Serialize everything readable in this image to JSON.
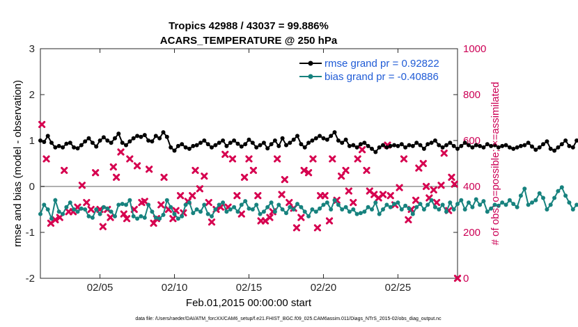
{
  "chart_data": {
    "type": "line",
    "title_line1": "Tropics 42988 / 43037 = 99.886%",
    "title_line2": "ACARS_TEMPERATURE @ 250 hPa",
    "xlabel": "Feb.01,2015 00:00:00 start",
    "ylabel_left": "rmse and bias (model - observation)",
    "ylabel_right": "# of obs: o=possible; ×=assimilated",
    "footer": "data file: /Users/raeder/DAI/ATM_forcXX/CAM6_setup/f.e21.FHIST_BGC.f09_025.CAM6assim.011/Diags_NTrS_2015-02/obs_diag_output.nc",
    "xlim": [
      1,
      29
    ],
    "ylim_left": [
      -2,
      3
    ],
    "ylim_right": [
      0,
      1000
    ],
    "x_ticks": [
      5,
      10,
      15,
      20,
      25
    ],
    "x_tick_labels": [
      "02/05",
      "02/10",
      "02/15",
      "02/20",
      "02/25"
    ],
    "y_left_ticks": [
      "-2",
      "-1",
      "0",
      "1",
      "2",
      "3"
    ],
    "y_right_ticks": [
      "0",
      "200",
      "400",
      "600",
      "800",
      "1000"
    ],
    "x_start": 1.0,
    "x_step": 0.25,
    "series": [
      {
        "name": "rmse grand pr = 0.92822",
        "color": "#000000",
        "axis": "left",
        "values": [
          1.0,
          0.97,
          1.1,
          0.95,
          0.85,
          0.88,
          0.85,
          0.93,
          0.95,
          0.85,
          0.83,
          0.9,
          0.98,
          1.05,
          0.95,
          0.87,
          1.0,
          1.07,
          1.0,
          0.95,
          1.05,
          1.15,
          0.95,
          0.9,
          0.98,
          1.05,
          1.1,
          1.08,
          1.12,
          1.0,
          0.98,
          1.1,
          1.05,
          1.18,
          1.08,
          0.85,
          0.78,
          0.88,
          0.92,
          0.85,
          0.82,
          0.88,
          0.9,
          0.95,
          1.0,
          0.92,
          0.85,
          0.9,
          0.95,
          1.0,
          0.88,
          0.95,
          1.0,
          0.93,
          0.87,
          0.92,
          1.02,
          0.95,
          0.85,
          0.9,
          0.95,
          0.83,
          0.92,
          1.0,
          0.88,
          1.05,
          0.9,
          0.95,
          1.02,
          1.1,
          0.92,
          0.85,
          0.95,
          1.0,
          1.05,
          1.1,
          1.05,
          1.02,
          1.1,
          1.18,
          1.0,
          0.95,
          1.02,
          0.88,
          0.9,
          0.85,
          0.92,
          0.95,
          0.88,
          0.82,
          0.75,
          0.85,
          0.9,
          0.85,
          0.88,
          0.9,
          0.88,
          0.92,
          0.85,
          0.9,
          0.88,
          0.95,
          0.9,
          0.82,
          0.92,
          0.95,
          1.0,
          0.9,
          0.85,
          0.9,
          0.95,
          0.88,
          0.82,
          0.88,
          0.95,
          0.9,
          0.85,
          0.9,
          0.88,
          0.85,
          0.92,
          0.88,
          0.9,
          0.85,
          0.88,
          0.9,
          0.85,
          0.82,
          0.85,
          0.88,
          0.9,
          0.95,
          0.87,
          0.8,
          0.85,
          0.92,
          0.98,
          0.82,
          0.78,
          0.85,
          0.92,
          1.0,
          0.88,
          0.85,
          1.0,
          0.95,
          0.98,
          0.92,
          0.88
        ]
      },
      {
        "name": "bias grand pr = -0.40886",
        "color": "#17827e",
        "axis": "left",
        "values": [
          -0.6,
          -0.4,
          -0.5,
          -0.7,
          -0.3,
          -0.55,
          -0.6,
          -0.45,
          -0.35,
          -0.5,
          -0.55,
          -0.48,
          -0.5,
          -0.65,
          -0.68,
          -0.5,
          -0.6,
          -0.45,
          -0.48,
          -0.55,
          -0.65,
          -0.4,
          -0.38,
          -0.4,
          -0.3,
          -0.65,
          -0.7,
          -0.65,
          -0.68,
          -0.4,
          -0.55,
          -0.68,
          -0.7,
          -0.62,
          -0.3,
          -0.45,
          -0.6,
          -0.7,
          -0.65,
          -0.4,
          -0.35,
          -0.58,
          -0.5,
          -0.55,
          -0.4,
          -0.6,
          -0.65,
          -0.5,
          -0.4,
          -0.35,
          -0.55,
          -0.5,
          -0.45,
          -0.55,
          -0.4,
          -0.32,
          -0.48,
          -0.5,
          -0.4,
          -0.6,
          -0.55,
          -0.45,
          -0.35,
          -0.55,
          -0.4,
          -0.5,
          -0.58,
          -0.45,
          -0.5,
          -0.38,
          -0.45,
          -0.55,
          -0.65,
          -0.5,
          -0.55,
          -0.48,
          -0.4,
          -0.35,
          -0.5,
          -0.3,
          -0.4,
          -0.5,
          -0.45,
          -0.55,
          -0.5,
          -0.6,
          -0.58,
          -0.55,
          -0.45,
          -0.5,
          -0.35,
          -0.6,
          -0.5,
          -0.4,
          -0.45,
          -0.38,
          -0.35,
          -0.5,
          -0.42,
          -0.48,
          -0.6,
          -0.45,
          -0.38,
          -0.5,
          -0.4,
          -0.3,
          -0.45,
          -0.5,
          -0.4,
          -0.55,
          -0.35,
          -0.5,
          -0.38,
          -0.3,
          -0.5,
          -0.35,
          -0.45,
          -0.28,
          -0.4,
          -0.32,
          -0.55,
          -0.48,
          -0.4,
          -0.42,
          -0.35,
          -0.4,
          -0.3,
          -0.38,
          -0.45,
          -0.2,
          -0.05,
          -0.4,
          -0.35,
          -0.3,
          -0.15,
          -0.25,
          -0.5,
          -0.4,
          -0.25,
          -0.1,
          -0.02,
          -0.2,
          -0.35,
          -0.5,
          -0.4,
          -0.35,
          -0.3,
          -0.5,
          -0.45,
          -0.4
        ]
      },
      {
        "name": "# obs assimilated",
        "color": "#d6004f",
        "axis": "right",
        "marker": "x",
        "points": [
          [
            1.1,
            670
          ],
          [
            1.4,
            520
          ],
          [
            1.7,
            240
          ],
          [
            2.0,
            255
          ],
          [
            2.3,
            265
          ],
          [
            2.6,
            470
          ],
          [
            2.9,
            290
          ],
          [
            3.2,
            290
          ],
          [
            3.5,
            310
          ],
          [
            3.8,
            405
          ],
          [
            4.1,
            330
          ],
          [
            4.4,
            300
          ],
          [
            4.7,
            460
          ],
          [
            5.0,
            300
          ],
          [
            5.2,
            225
          ],
          [
            5.5,
            300
          ],
          [
            5.7,
            265
          ],
          [
            5.9,
            485
          ],
          [
            6.1,
            440
          ],
          [
            6.4,
            550
          ],
          [
            6.6,
            280
          ],
          [
            6.8,
            260
          ],
          [
            7.0,
            520
          ],
          [
            7.3,
            300
          ],
          [
            7.5,
            490
          ],
          [
            7.8,
            330
          ],
          [
            8.0,
            335
          ],
          [
            8.3,
            475
          ],
          [
            8.6,
            240
          ],
          [
            8.8,
            260
          ],
          [
            9.1,
            320
          ],
          [
            9.3,
            440
          ],
          [
            9.6,
            300
          ],
          [
            9.9,
            260
          ],
          [
            10.1,
            295
          ],
          [
            10.4,
            360
          ],
          [
            10.6,
            285
          ],
          [
            10.9,
            335
          ],
          [
            11.2,
            360
          ],
          [
            11.4,
            470
          ],
          [
            11.7,
            390
          ],
          [
            12.0,
            445
          ],
          [
            12.3,
            330
          ],
          [
            12.5,
            245
          ],
          [
            12.8,
            300
          ],
          [
            13.1,
            310
          ],
          [
            13.4,
            540
          ],
          [
            13.6,
            310
          ],
          [
            13.9,
            520
          ],
          [
            14.2,
            360
          ],
          [
            14.5,
            280
          ],
          [
            14.7,
            440
          ],
          [
            15.0,
            520
          ],
          [
            15.3,
            470
          ],
          [
            15.6,
            360
          ],
          [
            15.8,
            250
          ],
          [
            16.1,
            250
          ],
          [
            16.4,
            265
          ],
          [
            16.6,
            290
          ],
          [
            16.9,
            520
          ],
          [
            17.2,
            365
          ],
          [
            17.4,
            430
          ],
          [
            17.7,
            330
          ],
          [
            18.0,
            305
          ],
          [
            18.2,
            220
          ],
          [
            18.5,
            265
          ],
          [
            18.7,
            470
          ],
          [
            19.0,
            460
          ],
          [
            19.3,
            520
          ],
          [
            19.6,
            220
          ],
          [
            19.8,
            360
          ],
          [
            20.1,
            360
          ],
          [
            20.4,
            250
          ],
          [
            20.6,
            520
          ],
          [
            20.9,
            340
          ],
          [
            21.2,
            445
          ],
          [
            21.5,
            470
          ],
          [
            21.7,
            380
          ],
          [
            22.0,
            330
          ],
          [
            22.3,
            520
          ],
          [
            22.6,
            560
          ],
          [
            22.9,
            470
          ],
          [
            23.1,
            380
          ],
          [
            23.4,
            365
          ],
          [
            23.7,
            350
          ],
          [
            24.0,
            365
          ],
          [
            24.3,
            580
          ],
          [
            24.5,
            360
          ],
          [
            24.8,
            320
          ],
          [
            25.1,
            395
          ],
          [
            25.4,
            520
          ],
          [
            25.7,
            255
          ],
          [
            25.9,
            300
          ],
          [
            26.2,
            340
          ],
          [
            26.4,
            480
          ],
          [
            26.7,
            500
          ],
          [
            26.9,
            400
          ],
          [
            27.1,
            350
          ],
          [
            27.4,
            385
          ],
          [
            27.6,
            330
          ],
          [
            27.9,
            405
          ],
          [
            28.1,
            545
          ],
          [
            28.4,
            295
          ],
          [
            28.6,
            440
          ],
          [
            28.8,
            410
          ]
        ]
      },
      {
        "name": "# obs possible",
        "color": "#d6004f",
        "axis": "right",
        "marker": "o",
        "points": [
          [
            29.0,
            0
          ]
        ]
      }
    ]
  }
}
